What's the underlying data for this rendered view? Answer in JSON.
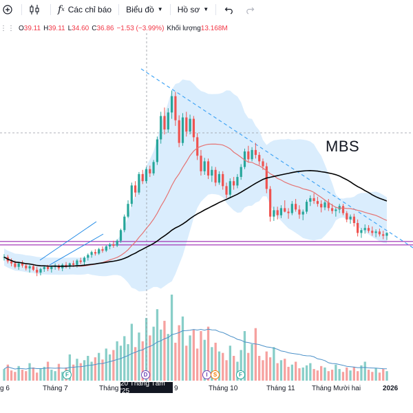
{
  "toolbar": {
    "indicators_label": "Các chỉ báo",
    "chart_label": "Biểu đồ",
    "profile_label": "Hồ sơ"
  },
  "ohlc": {
    "open_label": "O",
    "open": "39.11",
    "high_label": "H",
    "high": "39.11",
    "low_label": "L",
    "low": "34.60",
    "close_label": "C",
    "close": "36.86",
    "change": "−1.53 (−3.99%)",
    "volume_label": "Khối lượng",
    "volume": "13.168M"
  },
  "annotation": "MBS",
  "crosshair_date": "20 Tháng Tám '25",
  "x_axis": {
    "labels": [
      "g 6",
      "Tháng 7",
      "Tháng",
      "9",
      "Tháng 10",
      "Tháng 11",
      "Tháng Mười hai",
      "2026"
    ]
  },
  "event_markers": [
    "F",
    "D",
    "I",
    "S",
    "F"
  ],
  "colors": {
    "up": "#26a69a",
    "down": "#ef5350",
    "ma_fast": "#e57373",
    "ma_slow": "#000000",
    "band_fill": "#bbdefb",
    "trendline": "#42a5f5",
    "support": "#9c27b0",
    "volume_ma": "#4a90c8"
  },
  "chart_data": {
    "type": "candlestick",
    "title": "",
    "symbol": "MBS",
    "candles": [
      [
        33.4,
        33.9,
        33.0,
        33.5
      ],
      [
        33.5,
        33.8,
        32.6,
        32.9
      ],
      [
        32.9,
        33.3,
        32.2,
        32.6
      ],
      [
        32.6,
        33.0,
        31.9,
        32.1
      ],
      [
        32.1,
        32.8,
        31.7,
        32.6
      ],
      [
        32.6,
        33.0,
        32.0,
        32.3
      ],
      [
        32.3,
        32.6,
        31.6,
        31.9
      ],
      [
        31.9,
        32.4,
        31.3,
        32.2
      ],
      [
        32.2,
        32.5,
        31.5,
        31.7
      ],
      [
        31.7,
        32.1,
        30.8,
        31.3
      ],
      [
        31.3,
        32.0,
        30.9,
        31.8
      ],
      [
        31.8,
        32.3,
        31.4,
        32.1
      ],
      [
        32.1,
        32.4,
        31.5,
        31.8
      ],
      [
        31.8,
        32.3,
        31.3,
        32.1
      ],
      [
        32.1,
        32.6,
        31.7,
        32.3
      ],
      [
        32.3,
        32.5,
        31.6,
        31.9
      ],
      [
        31.9,
        32.6,
        31.5,
        32.4
      ],
      [
        32.4,
        32.8,
        31.9,
        32.1
      ],
      [
        32.1,
        32.7,
        31.8,
        32.6
      ],
      [
        32.6,
        33.0,
        32.1,
        32.4
      ],
      [
        32.4,
        33.2,
        32.0,
        33.0
      ],
      [
        33.0,
        33.4,
        32.5,
        32.8
      ],
      [
        32.8,
        33.6,
        32.4,
        33.4
      ],
      [
        33.4,
        34.0,
        33.0,
        33.8
      ],
      [
        33.8,
        34.4,
        33.4,
        34.2
      ],
      [
        34.2,
        34.6,
        33.7,
        34.0
      ],
      [
        34.0,
        34.8,
        33.8,
        34.6
      ],
      [
        34.6,
        35.0,
        34.1,
        34.4
      ],
      [
        34.4,
        35.2,
        34.2,
        35.0
      ],
      [
        35.0,
        35.5,
        34.6,
        35.3
      ],
      [
        35.3,
        35.8,
        34.8,
        35.1
      ],
      [
        35.1,
        36.0,
        34.9,
        35.8
      ],
      [
        35.8,
        37.5,
        35.5,
        37.3
      ],
      [
        37.3,
        39.5,
        37.0,
        39.2
      ],
      [
        39.2,
        41.5,
        39.0,
        41.0
      ],
      [
        41.0,
        44.0,
        40.6,
        43.6
      ],
      [
        43.6,
        44.2,
        42.0,
        42.6
      ],
      [
        42.6,
        45.5,
        42.3,
        45.2
      ],
      [
        45.2,
        45.8,
        43.8,
        44.2
      ],
      [
        44.2,
        46.2,
        43.9,
        45.9
      ],
      [
        45.9,
        46.4,
        44.8,
        45.3
      ],
      [
        45.3,
        47.2,
        45.0,
        46.9
      ],
      [
        46.9,
        50.5,
        46.5,
        50.1
      ],
      [
        50.1,
        54.0,
        49.5,
        53.4
      ],
      [
        53.4,
        54.6,
        50.8,
        51.5
      ],
      [
        51.5,
        54.5,
        51.0,
        53.9
      ],
      [
        53.9,
        57.0,
        53.0,
        56.2
      ],
      [
        56.2,
        56.8,
        52.0,
        52.8
      ],
      [
        52.8,
        53.5,
        49.0,
        49.6
      ],
      [
        49.6,
        53.8,
        49.2,
        53.2
      ],
      [
        53.2,
        54.0,
        50.5,
        51.2
      ],
      [
        51.2,
        53.6,
        50.8,
        53.0
      ],
      [
        53.0,
        53.4,
        49.8,
        50.4
      ],
      [
        50.4,
        51.0,
        47.2,
        47.8
      ],
      [
        47.8,
        48.6,
        45.0,
        45.6
      ],
      [
        45.6,
        47.5,
        45.1,
        47.0
      ],
      [
        47.0,
        47.4,
        44.5,
        45.0
      ],
      [
        45.0,
        46.3,
        44.1,
        45.8
      ],
      [
        45.8,
        46.2,
        43.5,
        44.0
      ],
      [
        44.0,
        45.6,
        43.7,
        45.2
      ],
      [
        45.2,
        45.6,
        43.0,
        43.5
      ],
      [
        43.5,
        44.0,
        41.8,
        42.3
      ],
      [
        42.3,
        44.6,
        42.0,
        44.2
      ],
      [
        44.2,
        44.8,
        43.0,
        43.6
      ],
      [
        43.6,
        45.2,
        43.2,
        44.8
      ],
      [
        44.8,
        46.6,
        44.4,
        46.2
      ],
      [
        46.2,
        48.8,
        45.9,
        48.4
      ],
      [
        48.4,
        49.2,
        46.8,
        47.3
      ],
      [
        47.3,
        49.0,
        47.0,
        48.6
      ],
      [
        48.6,
        49.6,
        47.4,
        47.9
      ],
      [
        47.9,
        48.3,
        46.5,
        47.0
      ],
      [
        47.0,
        47.4,
        45.8,
        46.3
      ],
      [
        46.3,
        46.8,
        42.5,
        43.1
      ],
      [
        43.1,
        43.5,
        38.5,
        39.2
      ],
      [
        39.2,
        40.6,
        38.6,
        40.1
      ],
      [
        40.1,
        40.6,
        38.8,
        39.4
      ],
      [
        39.4,
        40.8,
        39.0,
        40.4
      ],
      [
        40.4,
        41.5,
        39.8,
        39.9
      ],
      [
        39.9,
        40.4,
        38.9,
        39.7
      ],
      [
        39.7,
        41.4,
        39.4,
        41.0
      ],
      [
        41.0,
        41.7,
        39.9,
        40.2
      ],
      [
        40.2,
        40.8,
        38.9,
        39.5
      ],
      [
        39.5,
        40.2,
        38.7,
        39.9
      ],
      [
        39.9,
        41.6,
        39.6,
        41.3
      ],
      [
        41.3,
        42.2,
        40.7,
        41.8
      ],
      [
        41.8,
        42.5,
        41.0,
        41.4
      ],
      [
        41.4,
        42.0,
        40.6,
        41.0
      ],
      [
        41.0,
        41.5,
        39.8,
        40.5
      ],
      [
        40.5,
        41.6,
        40.1,
        41.2
      ],
      [
        41.2,
        41.7,
        40.0,
        40.4
      ],
      [
        40.4,
        41.0,
        39.6,
        40.0
      ],
      [
        40.0,
        40.6,
        39.2,
        40.2
      ],
      [
        40.2,
        41.0,
        39.7,
        40.7
      ],
      [
        40.7,
        41.0,
        39.4,
        39.7
      ],
      [
        39.7,
        40.0,
        38.4,
        38.8
      ],
      [
        38.8,
        39.5,
        38.2,
        39.2
      ],
      [
        39.2,
        39.6,
        37.8,
        38.3
      ],
      [
        38.3,
        38.8,
        36.4,
        36.9
      ],
      [
        36.9,
        37.6,
        36.2,
        37.3
      ],
      [
        37.3,
        38.1,
        36.8,
        37.6
      ],
      [
        37.6,
        38.0,
        36.9,
        37.2
      ],
      [
        37.2,
        37.8,
        36.5,
        36.9
      ],
      [
        36.9,
        37.4,
        36.3,
        37.1
      ],
      [
        37.1,
        37.5,
        36.4,
        36.7
      ],
      [
        36.7,
        37.2,
        36.0,
        36.5
      ],
      [
        36.5,
        37.0,
        35.9,
        36.9
      ]
    ],
    "volume": [
      1.6,
      2.2,
      1.4,
      1.2,
      2.0,
      1.5,
      1.3,
      2.4,
      1.8,
      1.1,
      1.7,
      1.9,
      2.6,
      1.5,
      1.3,
      2.3,
      1.2,
      1.8,
      3.6,
      2.2,
      3.0,
      2.4,
      2.8,
      3.4,
      2.6,
      3.2,
      3.8,
      2.9,
      4.4,
      3.6,
      4.2,
      5.4,
      4.8,
      6.1,
      5.0,
      7.8,
      4.6,
      6.6,
      5.4,
      8.6,
      6.2,
      7.4,
      9.8,
      7.0,
      8.2,
      6.4,
      11.8,
      5.2,
      7.6,
      8.8,
      4.8,
      6.2,
      7.0,
      4.4,
      6.8,
      5.6,
      7.4,
      4.6,
      5.2,
      4.0,
      3.8,
      2.8,
      4.8,
      3.4,
      2.6,
      4.2,
      6.8,
      3.8,
      5.0,
      7.2,
      3.4,
      2.8,
      4.0,
      3.2,
      4.6,
      2.4,
      2.8,
      3.0,
      1.9,
      2.2,
      2.6,
      1.7,
      1.8,
      2.1,
      2.4,
      1.6,
      1.4,
      2.0,
      1.8,
      1.3,
      1.5,
      2.2,
      1.6,
      1.2,
      1.8,
      1.4,
      1.9,
      1.3,
      2.1,
      2.6,
      1.5,
      1.2,
      1.7,
      1.1,
      1.6,
      1.3
    ],
    "volume_unit": "M",
    "volume_latest": 13.168,
    "ma_slow_length": 50,
    "ma_fast_length": 20,
    "bands": "bollinger",
    "support_level": 35.5,
    "ylim": [
      28,
      62
    ],
    "x_labels": [
      "g 6",
      "Tháng 7",
      "Tháng",
      "9",
      "Tháng 10",
      "Tháng 11",
      "Tháng Mười hai",
      "2026"
    ],
    "crosshair": "20 Tháng Tám '25",
    "grid": false,
    "legend": "none"
  }
}
